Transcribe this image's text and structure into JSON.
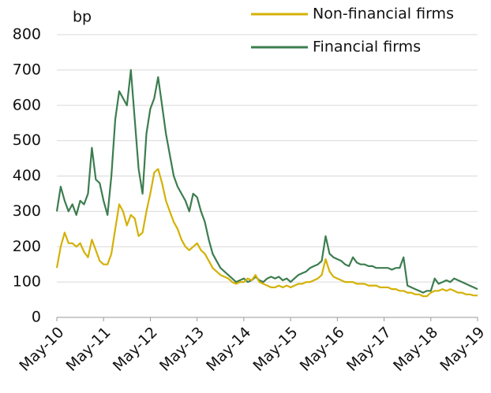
{
  "chart_data": {
    "type": "line",
    "y_unit_label": "bp",
    "x": [
      "2010-05",
      "2010-06",
      "2010-07",
      "2010-08",
      "2010-09",
      "2010-10",
      "2010-11",
      "2010-12",
      "2011-01",
      "2011-02",
      "2011-03",
      "2011-04",
      "2011-05",
      "2011-06",
      "2011-07",
      "2011-08",
      "2011-09",
      "2011-10",
      "2011-11",
      "2011-12",
      "2012-01",
      "2012-02",
      "2012-03",
      "2012-04",
      "2012-05",
      "2012-06",
      "2012-07",
      "2012-08",
      "2012-09",
      "2012-10",
      "2012-11",
      "2012-12",
      "2013-01",
      "2013-02",
      "2013-03",
      "2013-04",
      "2013-05",
      "2013-06",
      "2013-07",
      "2013-08",
      "2013-09",
      "2013-10",
      "2013-11",
      "2013-12",
      "2014-01",
      "2014-02",
      "2014-03",
      "2014-04",
      "2014-05",
      "2014-06",
      "2014-07",
      "2014-08",
      "2014-09",
      "2014-10",
      "2014-11",
      "2014-12",
      "2015-01",
      "2015-02",
      "2015-03",
      "2015-04",
      "2015-05",
      "2015-06",
      "2015-07",
      "2015-08",
      "2015-09",
      "2015-10",
      "2015-11",
      "2015-12",
      "2016-01",
      "2016-02",
      "2016-03",
      "2016-04",
      "2016-05",
      "2016-06",
      "2016-07",
      "2016-08",
      "2016-09",
      "2016-10",
      "2016-11",
      "2016-12",
      "2017-01",
      "2017-02",
      "2017-03",
      "2017-04",
      "2017-05",
      "2017-06",
      "2017-07",
      "2017-08",
      "2017-09",
      "2017-10",
      "2017-11",
      "2017-12",
      "2018-01",
      "2018-02",
      "2018-03",
      "2018-04",
      "2018-05",
      "2018-06",
      "2018-07",
      "2018-08",
      "2018-09",
      "2018-10",
      "2018-11",
      "2018-12",
      "2019-01",
      "2019-02",
      "2019-03",
      "2019-04",
      "2019-05"
    ],
    "series": [
      {
        "name": "Non-financial firms",
        "color": "#d4b106",
        "values": [
          140,
          200,
          240,
          210,
          210,
          200,
          210,
          185,
          170,
          220,
          190,
          160,
          150,
          150,
          180,
          250,
          320,
          300,
          260,
          290,
          280,
          230,
          240,
          300,
          350,
          410,
          420,
          380,
          330,
          300,
          270,
          250,
          220,
          200,
          190,
          200,
          210,
          190,
          180,
          160,
          140,
          130,
          120,
          115,
          110,
          100,
          95,
          100,
          100,
          110,
          105,
          120,
          100,
          95,
          90,
          85,
          85,
          90,
          85,
          90,
          85,
          90,
          95,
          95,
          100,
          100,
          105,
          110,
          120,
          165,
          130,
          115,
          110,
          105,
          100,
          100,
          100,
          95,
          95,
          95,
          90,
          90,
          90,
          85,
          85,
          85,
          80,
          80,
          75,
          75,
          70,
          70,
          65,
          65,
          60,
          60,
          70,
          75,
          75,
          80,
          75,
          80,
          75,
          70,
          70,
          65,
          65,
          62,
          62
        ]
      },
      {
        "name": "Financial firms",
        "color": "#3c7d4f",
        "values": [
          300,
          370,
          330,
          300,
          320,
          290,
          330,
          320,
          350,
          480,
          390,
          380,
          330,
          290,
          400,
          560,
          640,
          620,
          600,
          700,
          560,
          420,
          350,
          520,
          590,
          620,
          680,
          600,
          520,
          460,
          400,
          370,
          350,
          330,
          300,
          350,
          340,
          300,
          270,
          220,
          180,
          160,
          140,
          130,
          120,
          110,
          100,
          105,
          110,
          100,
          105,
          115,
          105,
          100,
          110,
          115,
          110,
          115,
          105,
          110,
          100,
          110,
          120,
          125,
          130,
          140,
          145,
          150,
          160,
          230,
          180,
          170,
          165,
          160,
          150,
          145,
          170,
          155,
          150,
          150,
          145,
          145,
          140,
          140,
          140,
          140,
          135,
          140,
          140,
          170,
          90,
          85,
          80,
          75,
          70,
          75,
          75,
          110,
          95,
          100,
          105,
          100,
          110,
          105,
          100,
          95,
          90,
          85,
          80
        ]
      }
    ],
    "xlim": [
      "2010-05",
      "2019-05"
    ],
    "xticks": [
      {
        "value": "2010-05",
        "label": "May-10"
      },
      {
        "value": "2011-05",
        "label": "May-11"
      },
      {
        "value": "2012-05",
        "label": "May-12"
      },
      {
        "value": "2013-05",
        "label": "May-13"
      },
      {
        "value": "2014-05",
        "label": "May-14"
      },
      {
        "value": "2015-05",
        "label": "May-15"
      },
      {
        "value": "2016-05",
        "label": "May-16"
      },
      {
        "value": "2017-05",
        "label": "May-17"
      },
      {
        "value": "2018-05",
        "label": "May-18"
      },
      {
        "value": "2019-05",
        "label": "May-19"
      }
    ],
    "ylim": [
      0,
      800
    ],
    "yticks": [
      0,
      100,
      200,
      300,
      400,
      500,
      600,
      700,
      800
    ],
    "grid": true,
    "legend": "top-right"
  }
}
